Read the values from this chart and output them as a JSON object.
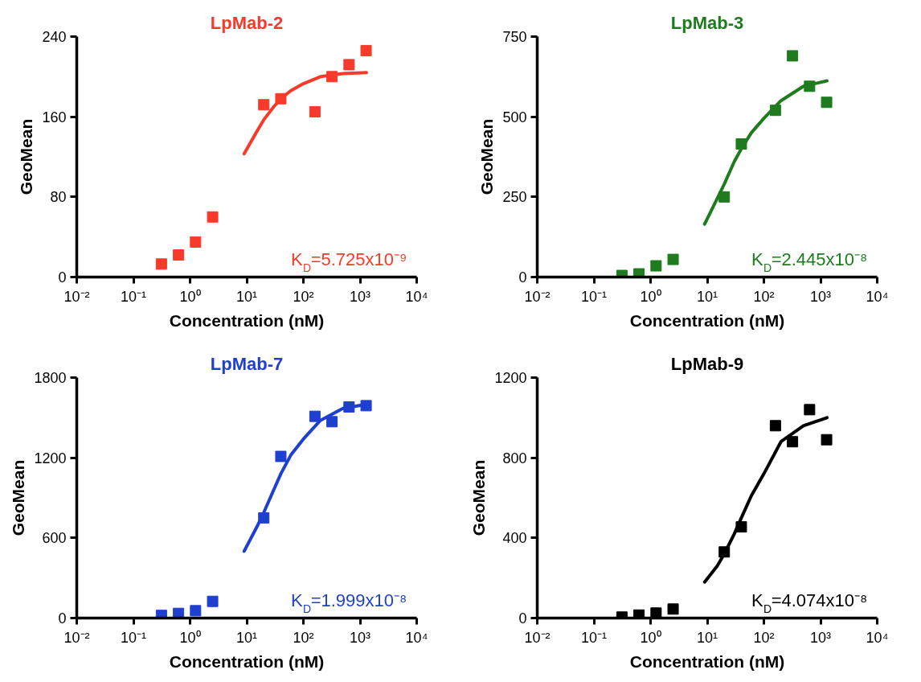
{
  "chart_data": [
    {
      "type": "scatter",
      "title": "LpMab-2",
      "xlabel": "Concentration (nM)",
      "ylabel": "GeoMean",
      "log": "x",
      "grid": false,
      "xlim": [
        0.01,
        10000
      ],
      "xticks": [
        {
          "value": 0.01,
          "label": "10⁻²"
        },
        {
          "value": 0.1,
          "label": "10⁻¹"
        },
        {
          "value": 1,
          "label": "10⁰"
        },
        {
          "value": 10,
          "label": "10¹"
        },
        {
          "value": 100,
          "label": "10²"
        },
        {
          "value": 1000,
          "label": "10³"
        },
        {
          "value": 10000,
          "label": "10⁴"
        }
      ],
      "ylim": [
        0,
        240
      ],
      "yticks": [
        0,
        80,
        160,
        240
      ],
      "x": [
        0.3125,
        0.625,
        1.25,
        2.5,
        20,
        40,
        160,
        320,
        640,
        1280
      ],
      "series": [
        {
          "marker": "square",
          "color": "#f83a2a",
          "values": [
            13,
            22,
            35,
            60,
            172,
            178,
            165,
            200,
            212,
            226
          ]
        },
        {
          "type": "line",
          "marker": "none",
          "color": "#f83a2a",
          "x": [
            9,
            15,
            20,
            30,
            40,
            60,
            100,
            200,
            500,
            1300
          ],
          "values": [
            123,
            145,
            157,
            170,
            178,
            186,
            193,
            200,
            203,
            204
          ]
        }
      ],
      "annotations": [
        "K$_{D}$=5.725x10⁻⁹"
      ]
    },
    {
      "type": "scatter",
      "title": "LpMab-3",
      "xlabel": "Concentration (nM)",
      "ylabel": "GeoMean",
      "log": "x",
      "grid": false,
      "xlim": [
        0.01,
        10000
      ],
      "xticks": [
        {
          "value": 0.01,
          "label": "10⁻²"
        },
        {
          "value": 0.1,
          "label": "10⁻¹"
        },
        {
          "value": 1,
          "label": "10⁰"
        },
        {
          "value": 10,
          "label": "10¹"
        },
        {
          "value": 100,
          "label": "10²"
        },
        {
          "value": 1000,
          "label": "10³"
        },
        {
          "value": 10000,
          "label": "10⁴"
        }
      ],
      "ylim": [
        0,
        750
      ],
      "yticks": [
        0,
        250,
        500,
        750
      ],
      "x": [
        0.3125,
        0.625,
        1.25,
        2.5,
        20,
        40,
        160,
        320,
        640,
        1280
      ],
      "series": [
        {
          "marker": "square",
          "color": "#1e7b1e",
          "values": [
            5,
            10,
            35,
            55,
            250,
            415,
            520,
            690,
            595,
            545
          ]
        },
        {
          "type": "line",
          "marker": "none",
          "color": "#1e7b1e",
          "x": [
            9,
            15,
            20,
            30,
            40,
            60,
            100,
            200,
            500,
            1300
          ],
          "values": [
            165,
            245,
            290,
            360,
            400,
            450,
            495,
            550,
            595,
            612
          ]
        }
      ],
      "annotations": [
        "K$_{D}$=2.445x10⁻⁸"
      ]
    },
    {
      "type": "scatter",
      "title": "LpMab-7",
      "xlabel": "Concentration (nM)",
      "ylabel": "GeoMean",
      "log": "x",
      "grid": false,
      "xlim": [
        0.01,
        10000
      ],
      "xticks": [
        {
          "value": 0.01,
          "label": "10⁻²"
        },
        {
          "value": 0.1,
          "label": "10⁻¹"
        },
        {
          "value": 1,
          "label": "10⁰"
        },
        {
          "value": 10,
          "label": "10¹"
        },
        {
          "value": 100,
          "label": "10²"
        },
        {
          "value": 1000,
          "label": "10³"
        },
        {
          "value": 10000,
          "label": "10⁴"
        }
      ],
      "ylim": [
        0,
        1800
      ],
      "yticks": [
        0,
        600,
        1200,
        1800
      ],
      "x": [
        0.3125,
        0.625,
        1.25,
        2.5,
        20,
        40,
        160,
        320,
        640,
        1280
      ],
      "series": [
        {
          "marker": "square",
          "color": "#1f3fcf",
          "values": [
            20,
            35,
            55,
            125,
            750,
            1210,
            1510,
            1470,
            1580,
            1590
          ]
        },
        {
          "type": "line",
          "marker": "none",
          "color": "#1f3fcf",
          "x": [
            9,
            15,
            20,
            30,
            40,
            60,
            100,
            200,
            500,
            1300
          ],
          "values": [
            500,
            680,
            790,
            960,
            1080,
            1220,
            1340,
            1480,
            1570,
            1600
          ]
        }
      ],
      "annotations": [
        "K$_{D}$=1.999x10⁻⁸"
      ]
    },
    {
      "type": "scatter",
      "title": "LpMab-9",
      "xlabel": "Concentration (nM)",
      "ylabel": "GeoMean",
      "log": "x",
      "grid": false,
      "xlim": [
        0.01,
        10000
      ],
      "xticks": [
        {
          "value": 0.01,
          "label": "10⁻²"
        },
        {
          "value": 0.1,
          "label": "10⁻¹"
        },
        {
          "value": 1,
          "label": "10⁰"
        },
        {
          "value": 10,
          "label": "10¹"
        },
        {
          "value": 100,
          "label": "10²"
        },
        {
          "value": 1000,
          "label": "10³"
        },
        {
          "value": 10000,
          "label": "10⁴"
        }
      ],
      "ylim": [
        0,
        1200
      ],
      "yticks": [
        0,
        400,
        800,
        1200
      ],
      "x": [
        0.3125,
        0.625,
        1.25,
        2.5,
        20,
        40,
        160,
        320,
        640,
        1280
      ],
      "series": [
        {
          "marker": "square",
          "color": "#000000",
          "values": [
            5,
            15,
            25,
            45,
            330,
            455,
            960,
            880,
            1040,
            890
          ]
        },
        {
          "type": "line",
          "marker": "none",
          "color": "#000000",
          "x": [
            9,
            15,
            20,
            30,
            40,
            60,
            100,
            200,
            500,
            1300
          ],
          "values": [
            180,
            260,
            320,
            420,
            500,
            610,
            720,
            880,
            960,
            1000
          ]
        }
      ],
      "annotations": [
        "K$_{D}$=4.074x10⁻⁸"
      ]
    }
  ]
}
